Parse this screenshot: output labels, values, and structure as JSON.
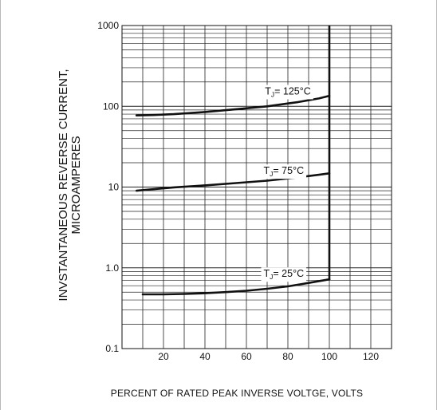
{
  "chart_data": {
    "type": "line",
    "xlabel": "PERCENT OF RATED PEAK INVERSE VOLTGE, VOLTS",
    "ylabel": [
      "INVSTANTANEOUS REVERSE CURRENT,",
      "MICROAMPERES"
    ],
    "xlim": [
      0,
      130
    ],
    "ylim": [
      0.1,
      1000
    ],
    "yscale": "log",
    "xticks": [
      20,
      40,
      60,
      80,
      100,
      120
    ],
    "yticks": [
      {
        "value": 0.1,
        "label": "0.1"
      },
      {
        "value": 1,
        "label": "1.0"
      },
      {
        "value": 10,
        "label": "10"
      },
      {
        "value": 100,
        "label": "100"
      },
      {
        "value": 1000,
        "label": "1000"
      }
    ],
    "grid": true,
    "vertical_breakdown_line_x": 100,
    "series": [
      {
        "name": "TJ= 125°C",
        "label_main": "T",
        "label_sub": "J",
        "label_rest": "= 125°C",
        "label_at": [
          80,
          140
        ],
        "x": [
          7,
          15,
          25,
          40,
          55,
          70,
          85,
          95,
          100
        ],
        "y": [
          77,
          78,
          80,
          85,
          92,
          100,
          113,
          125,
          135
        ]
      },
      {
        "name": "TJ= 75°C",
        "label_main": "T",
        "label_sub": "J",
        "label_rest": "= 75°C",
        "label_at": [
          78,
          14.5
        ],
        "x": [
          7,
          15,
          25,
          40,
          55,
          70,
          85,
          95,
          100
        ],
        "y": [
          9,
          9.4,
          9.9,
          10.5,
          11.2,
          12,
          13.2,
          14.2,
          14.8
        ]
      },
      {
        "name": "TJ= 25°C",
        "label_main": "T",
        "label_sub": "J",
        "label_rest": "= 25°C",
        "label_at": [
          78,
          0.77
        ],
        "x": [
          10,
          20,
          30,
          40,
          50,
          60,
          70,
          80,
          90,
          100
        ],
        "y": [
          0.47,
          0.47,
          0.475,
          0.485,
          0.5,
          0.52,
          0.55,
          0.59,
          0.65,
          0.72
        ]
      }
    ]
  }
}
